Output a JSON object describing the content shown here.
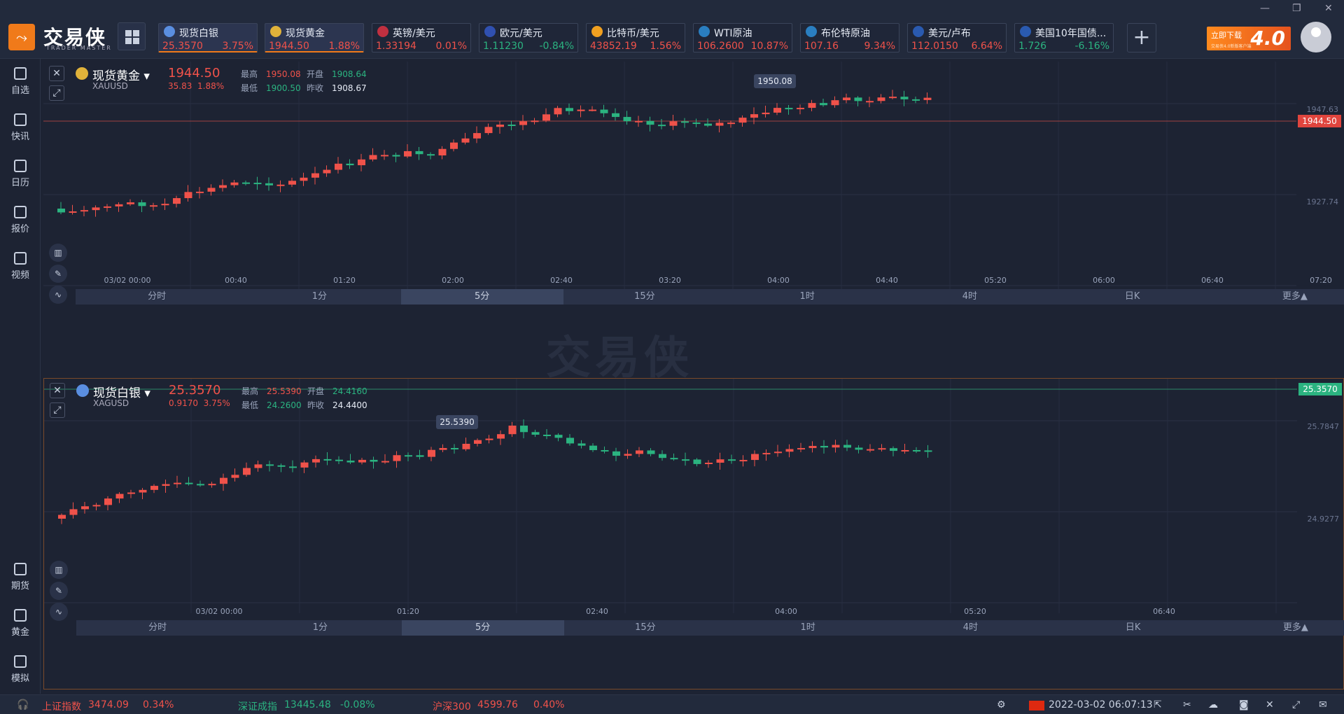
{
  "app": {
    "logo_text": "交易侠",
    "logo_sub": "TRADER MASTER",
    "promo_text": "立即下载",
    "promo_version": "4.0",
    "promo_small": "交易侠4.0新版客户端",
    "watermark": "交易侠"
  },
  "window": {
    "min": "—",
    "restore": "❐",
    "close": "✕"
  },
  "tickers": [
    {
      "name": "现货白银",
      "price": "25.3570",
      "change": "3.75%",
      "dir": "up",
      "icon_color": "#5a8ee0",
      "icon": "ag-icon",
      "active": true
    },
    {
      "name": "现货黄金",
      "price": "1944.50",
      "change": "1.88%",
      "dir": "up",
      "icon_color": "#e0b23a",
      "icon": "au-icon",
      "active": true
    },
    {
      "name": "英镑/美元",
      "price": "1.33194",
      "change": "0.01%",
      "dir": "up",
      "icon_color": "#c03040",
      "icon": "uk-flag-icon"
    },
    {
      "name": "欧元/美元",
      "price": "1.11230",
      "change": "-0.84%",
      "dir": "dn",
      "icon_color": "#3050b0",
      "icon": "eu-flag-icon"
    },
    {
      "name": "比特币/美元",
      "price": "43852.19",
      "change": "1.56%",
      "dir": "up",
      "icon_color": "#f0a020",
      "icon": "bitcoin-icon"
    },
    {
      "name": "WTI原油",
      "price": "106.2600",
      "change": "10.87%",
      "dir": "up",
      "icon_color": "#2a7ec0",
      "icon": "oil-icon"
    },
    {
      "name": "布伦特原油",
      "price": "107.16",
      "change": "9.34%",
      "dir": "up",
      "icon_color": "#2a7ec0",
      "icon": "oil-icon"
    },
    {
      "name": "美元/卢布",
      "price": "112.0150",
      "change": "6.64%",
      "dir": "up",
      "icon_color": "#2a5ab0",
      "icon": "bar-chart-icon"
    },
    {
      "name": "美国10年国债...",
      "price": "1.726",
      "change": "-6.16%",
      "dir": "dn",
      "icon_color": "#2a5ab0",
      "icon": "bar-chart-icon"
    }
  ],
  "sidebar": {
    "items": [
      {
        "label": "自选",
        "icon": "bookmark-icon"
      },
      {
        "label": "快讯",
        "icon": "news-icon"
      },
      {
        "label": "日历",
        "icon": "calendar-icon"
      },
      {
        "label": "报价",
        "icon": "quote-line-icon"
      },
      {
        "label": "视频",
        "icon": "video-icon"
      }
    ],
    "bottom": [
      {
        "label": "期货",
        "icon": "futures-icon"
      },
      {
        "label": "黄金",
        "icon": "gold-icon"
      },
      {
        "label": "模拟",
        "icon": "simulate-icon"
      }
    ]
  },
  "panel1": {
    "name": "现货黄金",
    "code": "XAUUSD",
    "price": "1944.50",
    "chg": "35.83",
    "pct": "1.88%",
    "high_label": "最高",
    "high": "1950.08",
    "open_label": "开盘",
    "open": "1908.64",
    "low_label": "最低",
    "low": "1900.50",
    "prev_label": "昨收",
    "prev": "1908.67",
    "icon_color": "#e0b23a",
    "y_labels": [
      "1947.63",
      "1927.74"
    ],
    "last_label": "1944.50",
    "peak_label": "1950.08",
    "x_labels": [
      "03/02 00:00",
      "00:40",
      "01:20",
      "02:00",
      "02:40",
      "03:20",
      "04:00",
      "04:40",
      "05:20",
      "06:00",
      "06:40",
      "07:20"
    ],
    "timeframes": [
      "分时",
      "1分",
      "5分",
      "15分",
      "1时",
      "4时",
      "日K",
      "更多▲"
    ],
    "selected_tf": 2
  },
  "panel2": {
    "name": "现货白银",
    "code": "XAGUSD",
    "price": "25.3570",
    "chg": "0.9170",
    "pct": "3.75%",
    "high_label": "最高",
    "high": "25.5390",
    "open_label": "开盘",
    "open": "24.4160",
    "low_label": "最低",
    "low": "24.2600",
    "prev_label": "昨收",
    "prev": "24.4400",
    "icon_color": "#5a8ee0",
    "y_labels": [
      "25.7847",
      "24.9277"
    ],
    "last_label": "25.3570",
    "peak_label": "25.5390",
    "x_labels": [
      "03/02 00:00",
      "01:20",
      "02:40",
      "04:00",
      "05:20",
      "06:40"
    ],
    "timeframes": [
      "分时",
      "1分",
      "5分",
      "15分",
      "1时",
      "4时",
      "日K",
      "更多▲"
    ],
    "selected_tf": 2
  },
  "status": {
    "sh_name": "上证指数",
    "sh_val": "3474.09",
    "sh_pct": "0.34%",
    "sz_name": "深证成指",
    "sz_val": "13445.48",
    "sz_pct": "-0.08%",
    "hs_name": "沪深300",
    "hs_val": "4599.76",
    "hs_pct": "0.40%",
    "datetime": "2022-03-02 06:07:13"
  },
  "chart_data": [
    {
      "type": "candlestick",
      "title": "现货黄金",
      "last": 1944.5,
      "high": 1950.08,
      "ylim": [
        1915,
        1955
      ]
    },
    {
      "type": "candlestick",
      "title": "现货白银",
      "last": 25.357,
      "high": 25.539,
      "ylim": [
        24.2,
        25.85
      ]
    }
  ]
}
